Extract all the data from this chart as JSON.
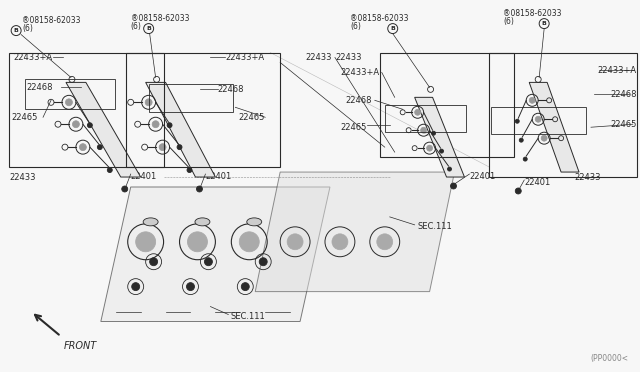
{
  "bg_color": "#f7f7f7",
  "line_color": "#2a2a2a",
  "fig_width": 6.4,
  "fig_height": 3.72,
  "dpi": 100,
  "watermark": "(PP0000<",
  "front_label": "FRONT",
  "bolt_text": "08158-62033",
  "bolt_qty": "(6)",
  "labels": [
    "22433+A",
    "22468",
    "22465",
    "22433",
    "22401",
    "SEC.111"
  ]
}
